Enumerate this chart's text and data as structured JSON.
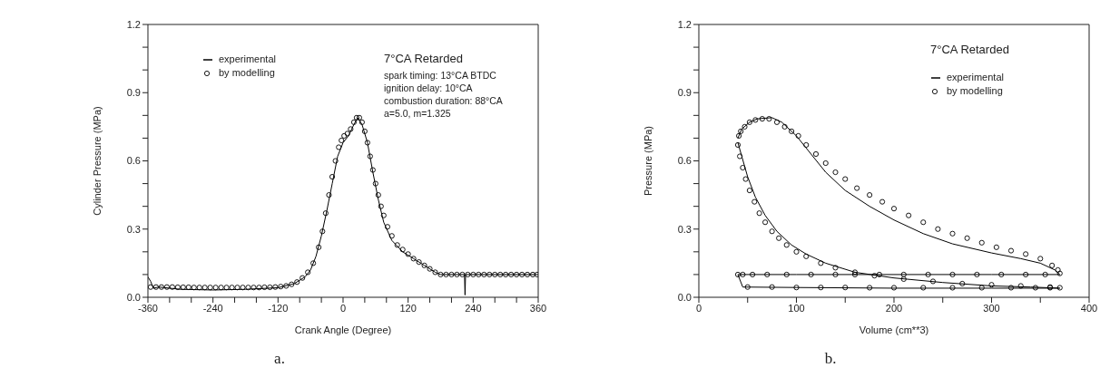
{
  "chart_data": [
    {
      "type": "line",
      "xlabel": "Crank Angle (Degree)",
      "ylabel": "Cylinder Pressure (MPa)",
      "xlim": [
        -360,
        360
      ],
      "ylim": [
        0,
        1.2
      ],
      "xticks": [
        -360,
        {
          "value": -320,
          "label": null
        },
        {
          "value": -280,
          "label": null
        },
        -240,
        {
          "value": -200,
          "label": null
        },
        {
          "value": -160,
          "label": null
        },
        -120,
        {
          "value": -80,
          "label": null
        },
        {
          "value": -40,
          "label": null
        },
        0,
        {
          "value": 40,
          "label": null
        },
        {
          "value": 80,
          "label": null
        },
        120,
        {
          "value": 160,
          "label": null
        },
        {
          "value": 200,
          "label": null
        },
        240,
        {
          "value": 280,
          "label": null
        },
        {
          "value": 320,
          "label": null
        },
        360
      ],
      "yticks": [
        {
          "value": 0,
          "label": "0.0"
        },
        {
          "value": 0.1,
          "label": null
        },
        {
          "value": 0.2,
          "label": null
        },
        0.3,
        {
          "value": 0.4,
          "label": null
        },
        {
          "value": 0.5,
          "label": null
        },
        0.6,
        {
          "value": 0.7,
          "label": null
        },
        {
          "value": 0.8,
          "label": null
        },
        0.9,
        {
          "value": 1.0,
          "label": null
        },
        {
          "value": 1.1,
          "label": null
        },
        1.2
      ],
      "grid": false,
      "legend": "top left",
      "annotations": [
        "7°CA Retarded",
        "spark timing: 13°CA BTDC",
        "ignition delay: 10°CA",
        "combustion duration: 88°CA",
        "a=5.0, m=1.325",
        "a."
      ],
      "series": [
        {
          "name": "experimental",
          "color": "#000000",
          "marker": "none",
          "line_style": "solid",
          "x": [
            -360,
            -355,
            -350,
            -340,
            -300,
            -240,
            -180,
            -120,
            -90,
            -70,
            -60,
            -50,
            -40,
            -30,
            -20,
            -10,
            0,
            10,
            20,
            27,
            35,
            45,
            55,
            65,
            75,
            90,
            110,
            130,
            150,
            170,
            180,
            224,
            225,
            226,
            360
          ],
          "values": [
            0.09,
            0.07,
            0.04,
            0.045,
            0.035,
            0.032,
            0.035,
            0.042,
            0.06,
            0.09,
            0.12,
            0.18,
            0.27,
            0.38,
            0.5,
            0.62,
            0.68,
            0.71,
            0.76,
            0.79,
            0.76,
            0.68,
            0.55,
            0.43,
            0.33,
            0.25,
            0.2,
            0.17,
            0.14,
            0.11,
            0.1,
            0.1,
            0.01,
            0.1,
            0.1
          ]
        },
        {
          "name": "by modelling",
          "type": "scatter",
          "color": "#000000",
          "marker": "circle",
          "x": [
            -355,
            -345,
            -335,
            -325,
            -315,
            -305,
            -295,
            -285,
            -275,
            -265,
            -255,
            -245,
            -235,
            -225,
            -215,
            -205,
            -195,
            -185,
            -175,
            -165,
            -155,
            -145,
            -135,
            -125,
            -115,
            -105,
            -95,
            -85,
            -75,
            -65,
            -55,
            -45,
            -38,
            -32,
            -26,
            -20,
            -14,
            -8,
            -3,
            2,
            8,
            14,
            20,
            25,
            30,
            35,
            40,
            45,
            50,
            55,
            60,
            65,
            70,
            75,
            82,
            90,
            100,
            110,
            120,
            130,
            140,
            150,
            160,
            170,
            180,
            190,
            200,
            210,
            220,
            230,
            240,
            250,
            260,
            270,
            280,
            290,
            300,
            310,
            320,
            330,
            340,
            350,
            358
          ],
          "values": [
            0.045,
            0.045,
            0.045,
            0.045,
            0.045,
            0.044,
            0.044,
            0.044,
            0.043,
            0.043,
            0.043,
            0.043,
            0.043,
            0.043,
            0.043,
            0.043,
            0.043,
            0.043,
            0.043,
            0.043,
            0.043,
            0.044,
            0.044,
            0.045,
            0.047,
            0.05,
            0.057,
            0.067,
            0.085,
            0.11,
            0.15,
            0.22,
            0.29,
            0.37,
            0.45,
            0.53,
            0.6,
            0.66,
            0.69,
            0.71,
            0.72,
            0.74,
            0.77,
            0.79,
            0.79,
            0.77,
            0.73,
            0.68,
            0.62,
            0.56,
            0.5,
            0.45,
            0.4,
            0.36,
            0.31,
            0.27,
            0.23,
            0.21,
            0.19,
            0.17,
            0.155,
            0.14,
            0.125,
            0.11,
            0.1,
            0.1,
            0.1,
            0.1,
            0.1,
            0.1,
            0.1,
            0.1,
            0.1,
            0.1,
            0.1,
            0.1,
            0.1,
            0.1,
            0.1,
            0.1,
            0.1,
            0.1,
            0.1
          ]
        }
      ]
    },
    {
      "type": "line",
      "xlabel": "Volume (cm**3)",
      "ylabel": "Pressure (MPa)",
      "xlim": [
        0,
        400
      ],
      "ylim": [
        0,
        1.2
      ],
      "xticks": [
        0,
        {
          "value": 50,
          "label": null
        },
        100,
        {
          "value": 150,
          "label": null
        },
        200,
        {
          "value": 250,
          "label": null
        },
        300,
        {
          "value": 350,
          "label": null
        },
        400
      ],
      "yticks": [
        {
          "value": 0,
          "label": "0.0"
        },
        {
          "value": 0.1,
          "label": null
        },
        {
          "value": 0.2,
          "label": null
        },
        0.3,
        {
          "value": 0.4,
          "label": null
        },
        {
          "value": 0.5,
          "label": null
        },
        0.6,
        {
          "value": 0.7,
          "label": null
        },
        {
          "value": 0.8,
          "label": null
        },
        0.9,
        {
          "value": 1.0,
          "label": null
        },
        {
          "value": 1.1,
          "label": null
        },
        1.2
      ],
      "grid": false,
      "legend": "top right",
      "annotations": [
        "7°CA Retarded",
        "b."
      ],
      "series": [
        {
          "name": "experimental",
          "color": "#000000",
          "marker": "none",
          "line_style": "solid",
          "x": [
            40,
            44,
            52,
            60,
            75,
            85,
            100,
            115,
            130,
            150,
            175,
            200,
            230,
            260,
            300,
            330,
            350,
            365,
            370
          ],
          "values": [
            0.7,
            0.74,
            0.77,
            0.785,
            0.79,
            0.77,
            0.71,
            0.63,
            0.55,
            0.47,
            0.4,
            0.34,
            0.28,
            0.235,
            0.195,
            0.17,
            0.15,
            0.12,
            0.1
          ]
        },
        {
          "color": "#000000",
          "marker": "none",
          "line_style": "solid",
          "x": [
            40,
            44,
            50,
            58,
            68,
            80,
            95,
            110,
            130,
            160,
            200,
            250,
            300,
            340,
            370
          ],
          "values": [
            0.68,
            0.62,
            0.53,
            0.44,
            0.36,
            0.29,
            0.23,
            0.19,
            0.15,
            0.11,
            0.085,
            0.065,
            0.05,
            0.045,
            0.04
          ]
        },
        {
          "color": "#000000",
          "marker": "none",
          "line_style": "solid",
          "x": [
            40,
            42,
            100,
            200,
            300,
            370
          ],
          "values": [
            0.1,
            0.1,
            0.1,
            0.1,
            0.1,
            0.1
          ]
        },
        {
          "color": "#000000",
          "marker": "none",
          "line_style": "solid",
          "x": [
            40,
            45,
            100,
            200,
            300,
            370
          ],
          "values": [
            0.1,
            0.045,
            0.043,
            0.04,
            0.04,
            0.04
          ]
        },
        {
          "name": "by modelling",
          "type": "scatter",
          "color": "#000000",
          "marker": "circle",
          "x": [
            360,
            330,
            300,
            270,
            240,
            210,
            180,
            160,
            140,
            125,
            110,
            100,
            90,
            82,
            75,
            68,
            62,
            57,
            52,
            48,
            45,
            42,
            40,
            41,
            43,
            47,
            52,
            58,
            65,
            72,
            80,
            88,
            95,
            102,
            110,
            120,
            130,
            140,
            150,
            162,
            175,
            188,
            200,
            215,
            230,
            245,
            260,
            275,
            290,
            305,
            320,
            335,
            350,
            362,
            368,
            370,
            355,
            335,
            310,
            285,
            260,
            235,
            210,
            185,
            160,
            140,
            115,
            90,
            70,
            55,
            45,
            40,
            50,
            75,
            100,
            125,
            150,
            175,
            200,
            230,
            260,
            290,
            320,
            345,
            360,
            370
          ],
          "values": [
            0.045,
            0.05,
            0.055,
            0.06,
            0.07,
            0.08,
            0.095,
            0.11,
            0.13,
            0.15,
            0.18,
            0.2,
            0.23,
            0.26,
            0.29,
            0.33,
            0.37,
            0.42,
            0.47,
            0.52,
            0.57,
            0.62,
            0.67,
            0.71,
            0.73,
            0.75,
            0.77,
            0.78,
            0.785,
            0.785,
            0.77,
            0.75,
            0.73,
            0.71,
            0.67,
            0.63,
            0.59,
            0.55,
            0.52,
            0.48,
            0.45,
            0.42,
            0.39,
            0.36,
            0.33,
            0.3,
            0.28,
            0.26,
            0.24,
            0.22,
            0.205,
            0.19,
            0.17,
            0.14,
            0.12,
            0.105,
            0.1,
            0.1,
            0.1,
            0.1,
            0.1,
            0.1,
            0.1,
            0.1,
            0.1,
            0.1,
            0.1,
            0.1,
            0.1,
            0.1,
            0.1,
            0.1,
            0.045,
            0.045,
            0.043,
            0.043,
            0.043,
            0.042,
            0.042,
            0.042,
            0.042,
            0.042,
            0.042,
            0.042,
            0.042,
            0.042
          ]
        }
      ]
    }
  ]
}
